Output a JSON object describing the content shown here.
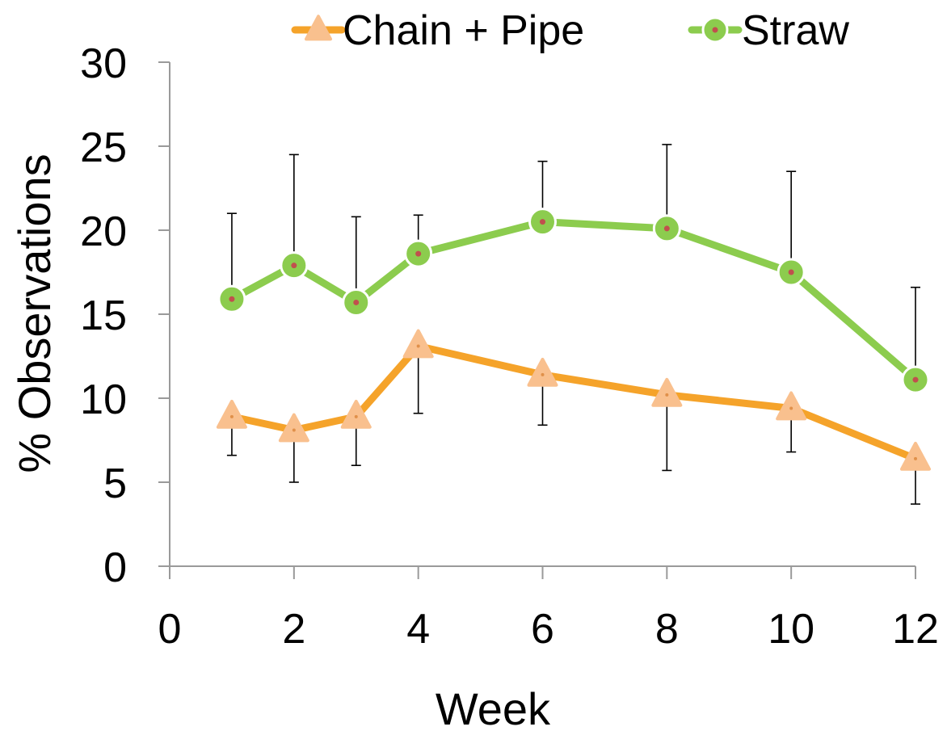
{
  "chart_data": {
    "type": "line",
    "title": "",
    "xlabel": "Week",
    "ylabel": "% Observations",
    "xlim": [
      0,
      12
    ],
    "ylim": [
      0,
      30
    ],
    "xticks": [
      "0",
      "2",
      "4",
      "6",
      "8",
      "10",
      "12"
    ],
    "yticks": [
      "0",
      "5",
      "10",
      "15",
      "20",
      "25",
      "30"
    ],
    "grid": false,
    "legend_position": "top",
    "series": [
      {
        "name": "Chain + Pipe",
        "color": "#f5a32a",
        "marker_color": "#f9c08e",
        "marker": "triangle",
        "x": [
          1,
          2,
          3,
          4,
          6,
          8,
          10,
          12
        ],
        "y": [
          8.9,
          8.1,
          8.9,
          13.1,
          11.4,
          10.2,
          9.4,
          6.4
        ],
        "error_upper": [
          null,
          null,
          null,
          null,
          null,
          null,
          null,
          null
        ],
        "error_lower": [
          6.6,
          5.0,
          6.0,
          9.1,
          8.4,
          5.7,
          6.8,
          3.7
        ]
      },
      {
        "name": "Straw",
        "color": "#8ccc4e",
        "marker_color": "#8ccc4e",
        "marker": "circle",
        "x": [
          1,
          2,
          3,
          4,
          6,
          8,
          10,
          12
        ],
        "y": [
          15.9,
          17.9,
          15.7,
          18.6,
          20.5,
          20.1,
          17.5,
          11.1
        ],
        "error_upper": [
          21.0,
          24.5,
          20.8,
          20.9,
          24.1,
          25.1,
          23.5,
          16.6
        ],
        "error_lower": [
          null,
          null,
          null,
          null,
          null,
          null,
          null,
          null
        ]
      }
    ]
  }
}
